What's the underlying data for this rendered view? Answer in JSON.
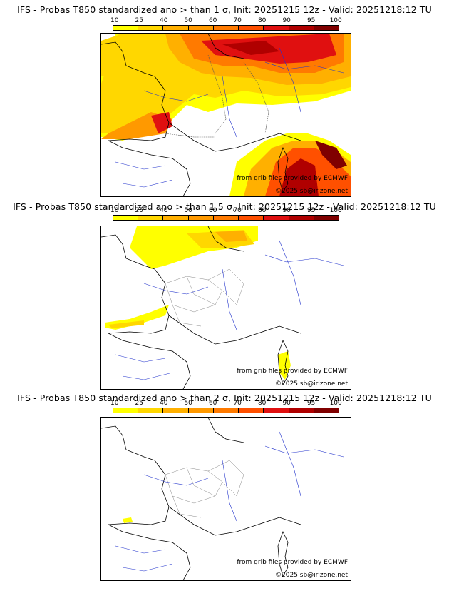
{
  "scale": {
    "ticks": [
      "10",
      "25",
      "40",
      "50",
      "60",
      "70",
      "80",
      "90",
      "95",
      "100"
    ],
    "colors": [
      "#ffff00",
      "#ffd700",
      "#ffb000",
      "#ff9900",
      "#ff7a00",
      "#ff5000",
      "#e01010",
      "#b00000",
      "#800000"
    ]
  },
  "panels": [
    {
      "title": "IFS - Probas T850  standardized ano > than 1 σ, Init: 20251215 12z - Valid: 20251218:12 TU",
      "credit_source": "from grib files provided by ECMWF",
      "credit_copyright": "©2025 sb@irizone.net"
    },
    {
      "title": "IFS - Probas T850  standardized ano > than 1.5 σ, Init: 20251215 12z - Valid: 20251218:12 TU",
      "credit_source": "from grib files provided by ECMWF",
      "credit_copyright": "©2025 sb@irizone.net"
    },
    {
      "title": "IFS - Probas T850  standardized ano > than 2 σ, Init: 20251215 12z - Valid: 20251218:12 TU",
      "credit_source": "from grib files provided by ECMWF",
      "credit_copyright": "©2025 sb@irizone.net"
    }
  ]
}
